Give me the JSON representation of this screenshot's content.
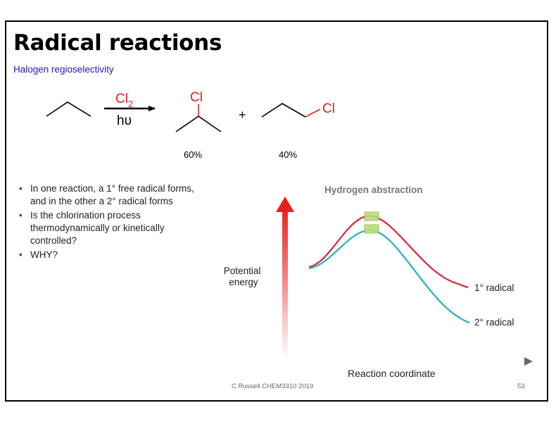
{
  "slide": {
    "title": "Radical reactions",
    "subtitle": "Halogen regioselectivity",
    "reaction": {
      "reagent_main": "Cl",
      "reagent_sub": "2",
      "condition": "hυ",
      "plus": "+",
      "product1_atom": "Cl",
      "product2_atom": "Cl",
      "product1_yield": "60%",
      "product2_yield": "40%"
    },
    "bullets": [
      "In one reaction, a 1° free radical forms, and in the other a 2° radical forms",
      "Is the chlorination process thermodynamically or kinetically controlled?",
      "WHY?"
    ],
    "footer": {
      "credit": "C Russell CHEM3310 2019",
      "page": "53"
    },
    "colors": {
      "subtitle": "#1a1acc",
      "chlorine": "#e0201b",
      "primary_curve": "#d9263a",
      "secondary_curve": "#1fb3c6"
    }
  },
  "chart_data": {
    "type": "line",
    "title": "Hydrogen abstraction",
    "xlabel": "Reaction coordinate",
    "ylabel": "Potential energy",
    "series": [
      {
        "name": "1° radical",
        "color": "#d9263a"
      },
      {
        "name": "2° radical",
        "color": "#1fb3c6"
      }
    ],
    "grid": false
  }
}
